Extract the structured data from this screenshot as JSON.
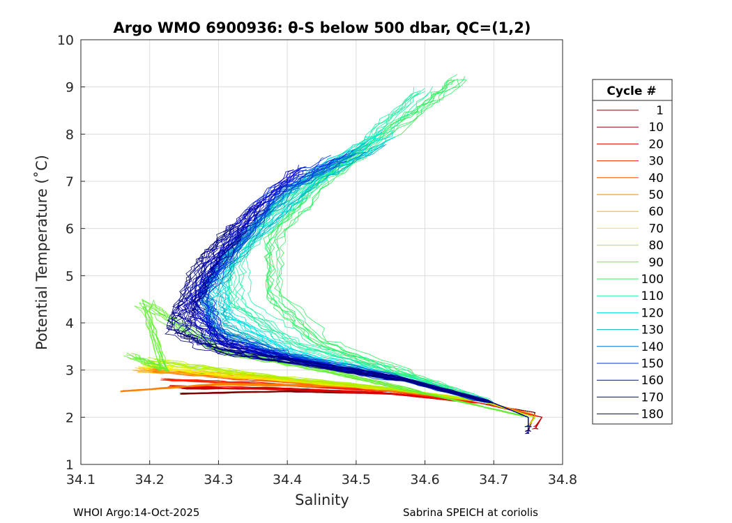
{
  "chart_data": {
    "type": "line",
    "title": "Argo WMO 6900936: θ-S below 500 dbar,  QC=(1,2)",
    "xlabel": "Salinity",
    "ylabel": "Potential Temperature (˚C)",
    "xlim": [
      34.1,
      34.8
    ],
    "ylim": [
      1,
      10
    ],
    "x_ticks": [
      "34.1",
      "34.2",
      "34.3",
      "34.4",
      "34.5",
      "34.6",
      "34.7",
      "34.8"
    ],
    "y_ticks": [
      "1",
      "2",
      "3",
      "4",
      "5",
      "6",
      "7",
      "8",
      "9",
      "10"
    ],
    "grid": true,
    "legend_title": "Cycle #",
    "legend_position": "right, outside",
    "series": [
      {
        "name": "1",
        "color": "#800000",
        "cycle": 1,
        "points": [
          [
            34.245,
            2.5
          ],
          [
            34.4,
            2.55
          ],
          [
            34.55,
            2.5
          ],
          [
            34.68,
            2.3
          ],
          [
            34.76,
            2.1
          ],
          [
            34.75,
            1.7
          ]
        ]
      },
      {
        "name": "10",
        "color": "#a00000",
        "cycle": 10,
        "points": [
          [
            34.25,
            2.6
          ],
          [
            34.4,
            2.6
          ],
          [
            34.55,
            2.5
          ],
          [
            34.68,
            2.3
          ],
          [
            34.77,
            2.0
          ],
          [
            34.76,
            1.75
          ]
        ]
      },
      {
        "name": "20",
        "color": "#e00000",
        "cycle": 20,
        "points": [
          [
            34.23,
            2.65
          ],
          [
            34.4,
            2.6
          ],
          [
            34.55,
            2.5
          ],
          [
            34.68,
            2.3
          ],
          [
            34.77,
            2.0
          ],
          [
            34.76,
            1.8
          ]
        ]
      },
      {
        "name": "30",
        "color": "#ff2000",
        "cycle": 30,
        "points": [
          [
            34.22,
            2.8
          ],
          [
            34.38,
            2.7
          ],
          [
            34.55,
            2.55
          ],
          [
            34.68,
            2.3
          ],
          [
            34.76,
            2.05
          ],
          [
            34.75,
            1.8
          ]
        ]
      },
      {
        "name": "40",
        "color": "#ff5000",
        "cycle": 40,
        "points": [
          [
            34.2,
            3.0
          ],
          [
            34.35,
            2.8
          ],
          [
            34.55,
            2.6
          ],
          [
            34.68,
            2.35
          ],
          [
            34.76,
            2.05
          ],
          [
            34.75,
            1.8
          ]
        ]
      },
      {
        "name": "50",
        "color": "#ff8000",
        "cycle": 50,
        "points": [
          [
            34.16,
            2.55
          ],
          [
            34.3,
            2.7
          ],
          [
            34.5,
            2.65
          ],
          [
            34.68,
            2.35
          ],
          [
            34.76,
            2.05
          ],
          [
            34.75,
            1.8
          ]
        ]
      },
      {
        "name": "60",
        "color": "#ffb000",
        "cycle": 60,
        "points": [
          [
            34.18,
            3.0
          ],
          [
            34.35,
            2.85
          ],
          [
            34.55,
            2.6
          ],
          [
            34.68,
            2.35
          ],
          [
            34.76,
            2.0
          ],
          [
            34.75,
            1.8
          ]
        ]
      },
      {
        "name": "70",
        "color": "#f0f000",
        "cycle": 70,
        "points": [
          [
            34.19,
            3.1
          ],
          [
            34.35,
            2.85
          ],
          [
            34.55,
            2.6
          ],
          [
            34.68,
            2.35
          ],
          [
            34.76,
            2.0
          ],
          [
            34.75,
            1.8
          ]
        ]
      },
      {
        "name": "80",
        "color": "#b0f000",
        "cycle": 80,
        "points": [
          [
            34.2,
            3.2
          ],
          [
            34.35,
            2.9
          ],
          [
            34.55,
            2.6
          ],
          [
            34.68,
            2.35
          ],
          [
            34.76,
            2.0
          ],
          [
            34.75,
            1.8
          ]
        ]
      },
      {
        "name": "90",
        "color": "#60f030",
        "cycle": 90,
        "points": [
          [
            34.17,
            3.3
          ],
          [
            34.22,
            3.0
          ],
          [
            34.19,
            4.4
          ],
          [
            34.3,
            3.4
          ],
          [
            34.45,
            3.0
          ],
          [
            34.6,
            2.5
          ],
          [
            34.75,
            2.0
          ],
          [
            34.75,
            1.8
          ]
        ]
      },
      {
        "name": "100",
        "color": "#30f060",
        "cycle": 100,
        "points": [
          [
            34.65,
            9.2
          ],
          [
            34.58,
            8.4
          ],
          [
            34.45,
            7.0
          ],
          [
            34.38,
            5.8
          ],
          [
            34.38,
            4.6
          ],
          [
            34.45,
            3.6
          ],
          [
            34.58,
            2.9
          ],
          [
            34.7,
            2.3
          ],
          [
            34.75,
            2.0
          ],
          [
            34.75,
            1.8
          ]
        ]
      },
      {
        "name": "110",
        "color": "#20f0a0",
        "cycle": 110,
        "points": [
          [
            34.6,
            8.9
          ],
          [
            34.52,
            7.8
          ],
          [
            34.4,
            6.5
          ],
          [
            34.33,
            5.4
          ],
          [
            34.33,
            4.4
          ],
          [
            34.42,
            3.5
          ],
          [
            34.58,
            2.85
          ],
          [
            34.7,
            2.3
          ],
          [
            34.75,
            2.0
          ],
          [
            34.75,
            1.8
          ]
        ]
      },
      {
        "name": "120",
        "color": "#00e0e0",
        "cycle": 120,
        "points": [
          [
            34.55,
            8.0
          ],
          [
            34.45,
            7.2
          ],
          [
            34.36,
            6.0
          ],
          [
            34.3,
            5.0
          ],
          [
            34.31,
            4.2
          ],
          [
            34.4,
            3.4
          ],
          [
            34.57,
            2.8
          ],
          [
            34.7,
            2.3
          ],
          [
            34.75,
            2.0
          ],
          [
            34.75,
            1.8
          ]
        ]
      },
      {
        "name": "130",
        "color": "#00b0c0",
        "cycle": 130,
        "points": [
          [
            34.53,
            7.8
          ],
          [
            34.43,
            7.0
          ],
          [
            34.34,
            5.8
          ],
          [
            34.29,
            4.8
          ],
          [
            34.3,
            4.0
          ],
          [
            34.4,
            3.3
          ],
          [
            34.57,
            2.8
          ],
          [
            34.7,
            2.3
          ],
          [
            34.75,
            2.0
          ],
          [
            34.75,
            1.8
          ]
        ]
      },
      {
        "name": "140",
        "color": "#0070d0",
        "cycle": 140,
        "points": [
          [
            34.5,
            7.6
          ],
          [
            34.4,
            6.8
          ],
          [
            34.33,
            5.6
          ],
          [
            34.28,
            4.6
          ],
          [
            34.3,
            3.8
          ],
          [
            34.4,
            3.3
          ],
          [
            34.57,
            2.8
          ],
          [
            34.7,
            2.3
          ],
          [
            34.75,
            2.0
          ],
          [
            34.75,
            1.8
          ]
        ]
      },
      {
        "name": "150",
        "color": "#0030e0",
        "cycle": 150,
        "points": [
          [
            34.47,
            7.5
          ],
          [
            34.38,
            6.8
          ],
          [
            34.31,
            5.4
          ],
          [
            34.27,
            4.6
          ],
          [
            34.3,
            3.7
          ],
          [
            34.4,
            3.3
          ],
          [
            34.57,
            2.8
          ],
          [
            34.7,
            2.3
          ],
          [
            34.75,
            2.0
          ],
          [
            34.75,
            1.8
          ]
        ]
      },
      {
        "name": "160",
        "color": "#0000d0",
        "cycle": 160,
        "points": [
          [
            34.42,
            7.3
          ],
          [
            34.35,
            6.4
          ],
          [
            34.29,
            5.2
          ],
          [
            34.26,
            4.4
          ],
          [
            34.3,
            3.6
          ],
          [
            34.4,
            3.25
          ],
          [
            34.57,
            2.8
          ],
          [
            34.7,
            2.3
          ],
          [
            34.75,
            2.0
          ],
          [
            34.75,
            1.8
          ]
        ]
      },
      {
        "name": "170",
        "color": "#0000a0",
        "cycle": 170,
        "points": [
          [
            34.36,
            6.5
          ],
          [
            34.3,
            5.6
          ],
          [
            34.27,
            4.8
          ],
          [
            34.25,
            4.1
          ],
          [
            34.31,
            3.5
          ],
          [
            34.4,
            3.2
          ],
          [
            34.57,
            2.8
          ],
          [
            34.7,
            2.3
          ],
          [
            34.75,
            2.0
          ],
          [
            34.75,
            1.7
          ]
        ]
      },
      {
        "name": "180",
        "color": "#000080",
        "cycle": 180,
        "points": [
          [
            34.33,
            6.0
          ],
          [
            34.28,
            5.2
          ],
          [
            34.25,
            4.3
          ],
          [
            34.24,
            3.8
          ],
          [
            34.3,
            3.4
          ],
          [
            34.4,
            3.2
          ],
          [
            34.57,
            2.8
          ],
          [
            34.7,
            2.3
          ],
          [
            34.75,
            2.0
          ],
          [
            34.75,
            1.65
          ]
        ]
      }
    ]
  },
  "footer": {
    "left": "WHOI Argo:14-Oct-2025",
    "right": "Sabrina SPEICH at coriolis"
  }
}
